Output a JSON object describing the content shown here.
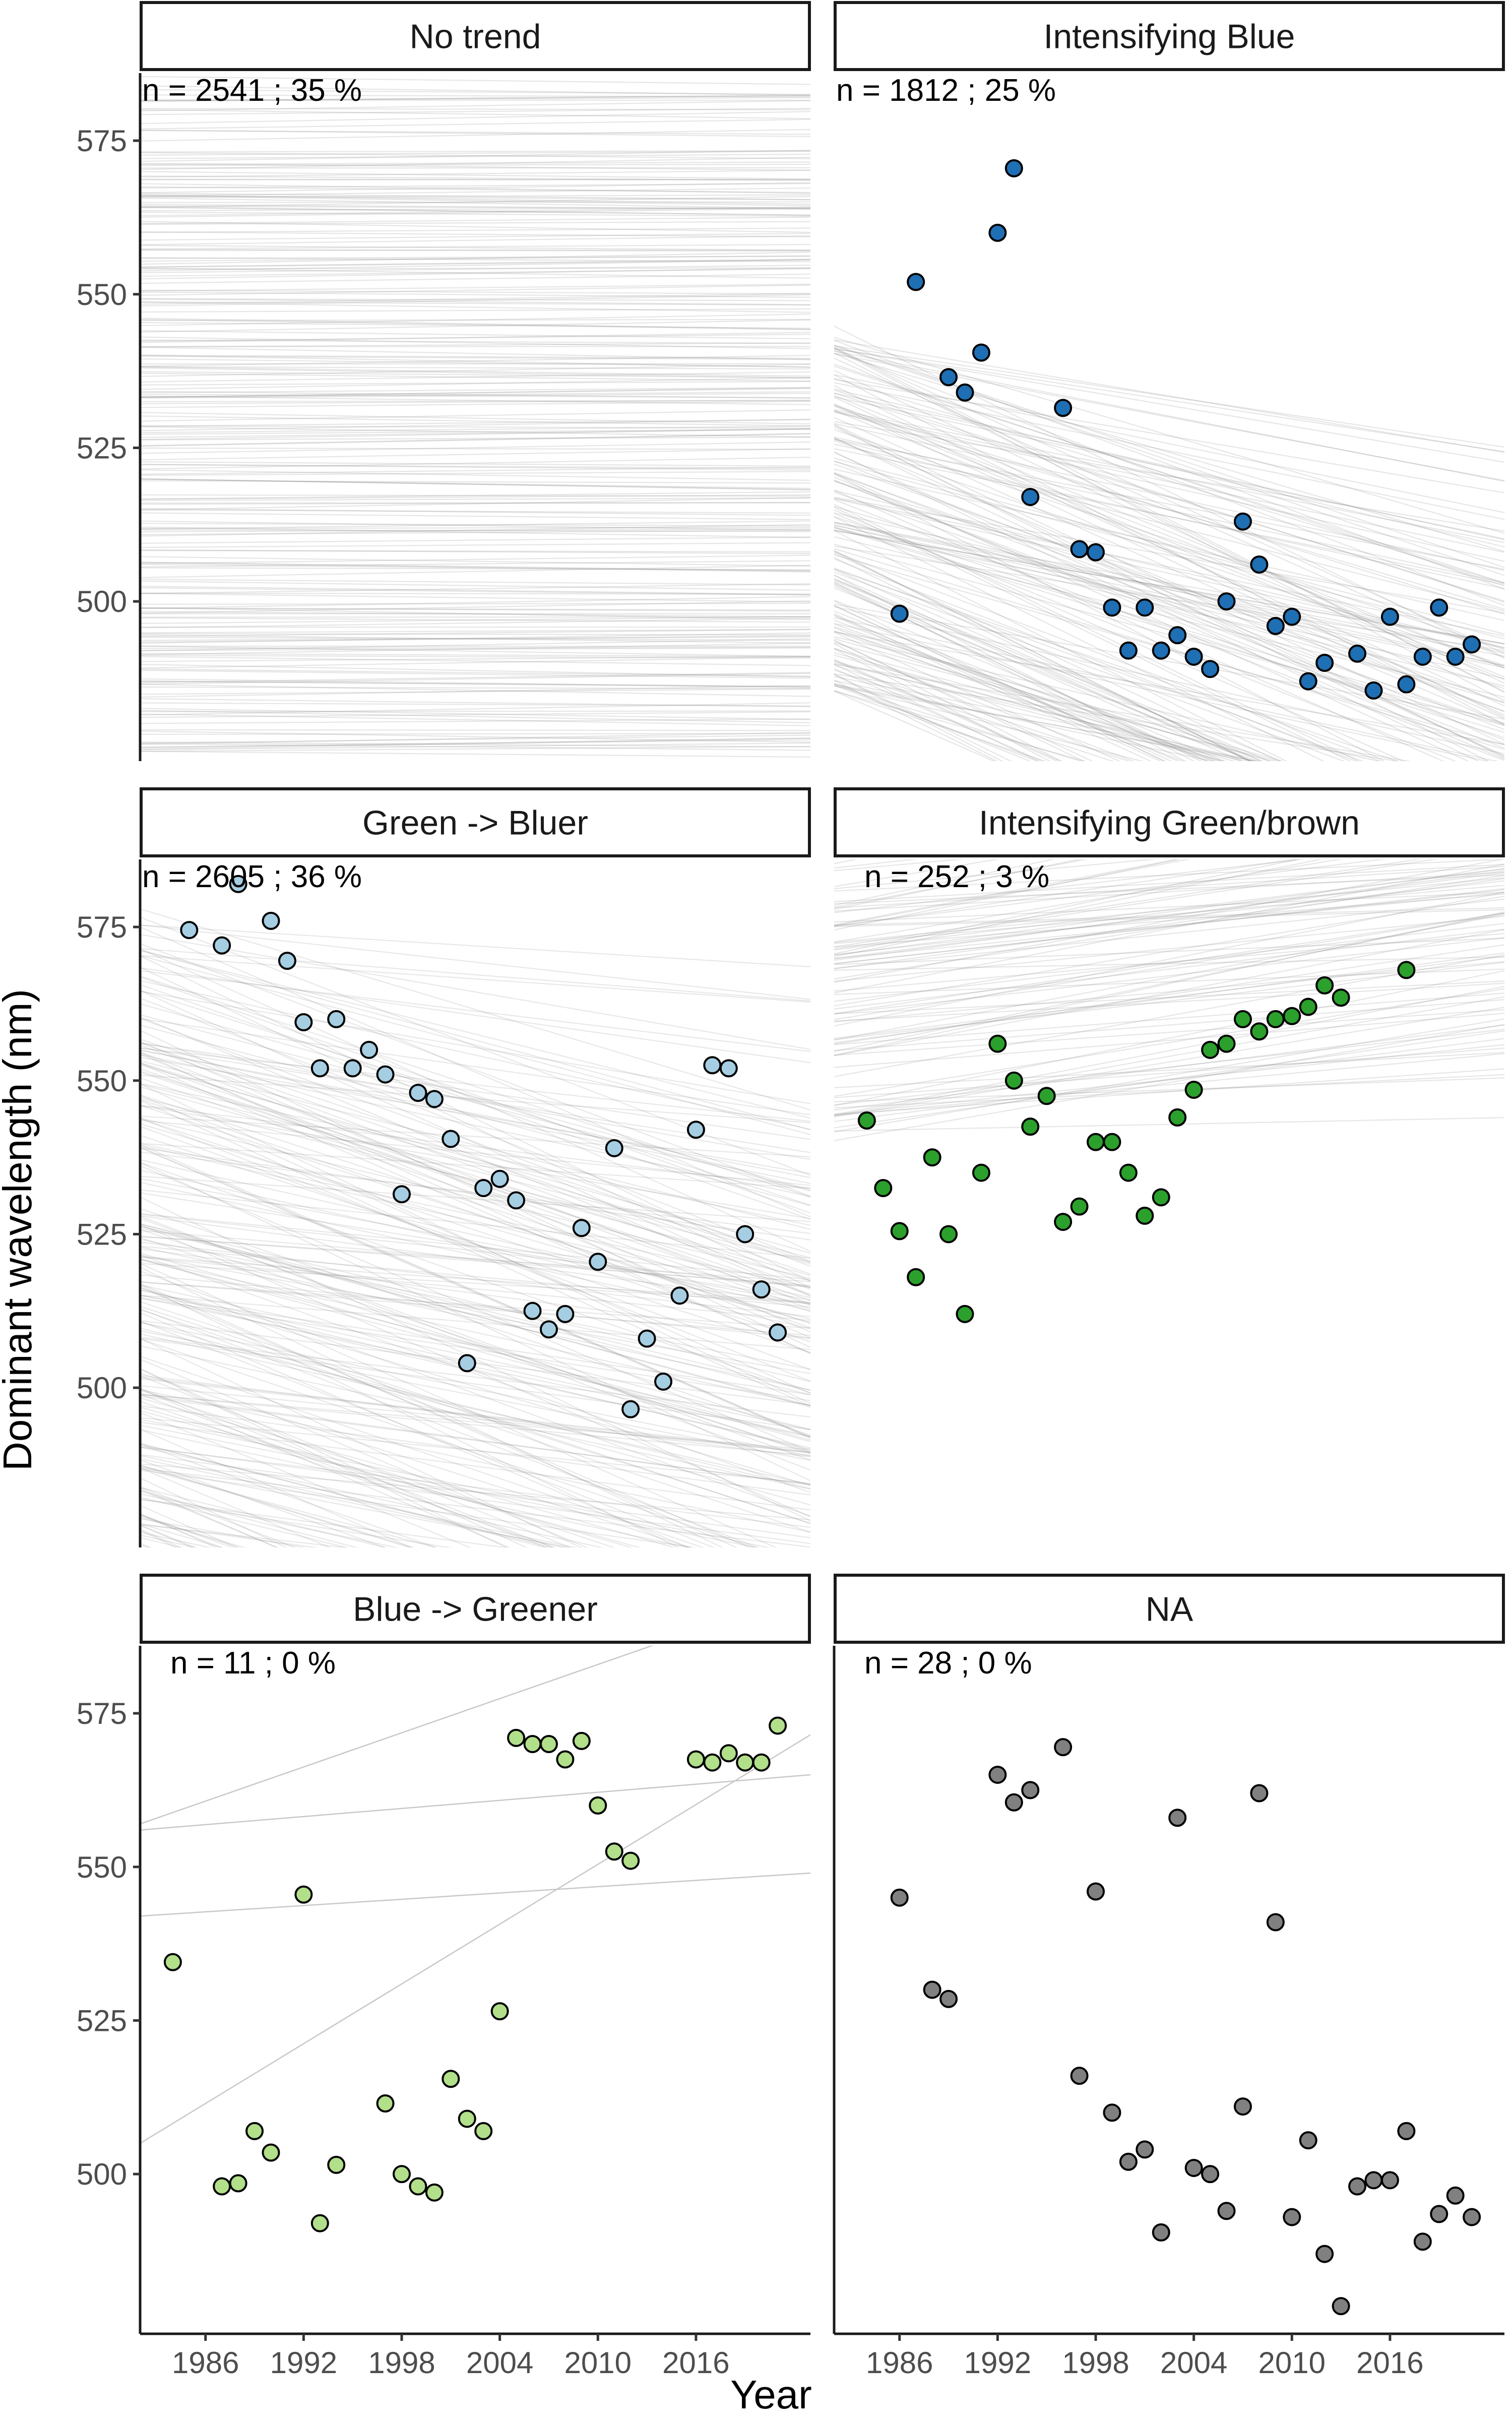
{
  "chart_data": {
    "type": "scatter",
    "title": "",
    "xlabel": "Year",
    "ylabel": "Dominant wavelength (nm)",
    "xlim": [
      1982,
      2023
    ],
    "ylim": [
      474,
      586
    ],
    "xticks": [
      1986,
      1992,
      1998,
      2004,
      2010,
      2016
    ],
    "yticks": [
      500,
      525,
      550,
      575
    ],
    "layout": "3 rows x 2 columns facets",
    "panels": [
      {
        "strip": "No trend",
        "annotation": "n = 2541 ; 35 %",
        "color": "#808080",
        "line_bundle": {
          "start_range": [
            474,
            586
          ],
          "slope_range": [
            -0.05,
            0.05
          ],
          "count": 260,
          "opacity": 0.22
        },
        "lines": [],
        "points": []
      },
      {
        "strip": "Intensifying Blue",
        "annotation": "n = 1812 ; 25 %",
        "color": "#1f6fb4",
        "line_bundle": {
          "start_range": [
            485,
            545
          ],
          "slope_range": [
            -1.4,
            -0.4
          ],
          "count": 180,
          "opacity": 0.22
        },
        "lines": [],
        "points": [
          [
            1986,
            498
          ],
          [
            1987,
            552
          ],
          [
            1989,
            536.5
          ],
          [
            1990,
            534
          ],
          [
            1991,
            540.5
          ],
          [
            1992,
            560
          ],
          [
            1993,
            570.5
          ],
          [
            1994,
            517
          ],
          [
            1996,
            531.5
          ],
          [
            1997,
            508.5
          ],
          [
            1998,
            508
          ],
          [
            1999,
            499
          ],
          [
            2000,
            492
          ],
          [
            2001,
            499
          ],
          [
            2002,
            492
          ],
          [
            2003,
            494.5
          ],
          [
            2004,
            491
          ],
          [
            2005,
            489
          ],
          [
            2006,
            500
          ],
          [
            2007,
            513
          ],
          [
            2008,
            506
          ],
          [
            2009,
            496
          ],
          [
            2010,
            497.5
          ],
          [
            2011,
            487
          ],
          [
            2012,
            490
          ],
          [
            2014,
            491.5
          ],
          [
            2015,
            485.5
          ],
          [
            2016,
            497.5
          ],
          [
            2017,
            486.5
          ],
          [
            2018,
            491
          ],
          [
            2019,
            499
          ],
          [
            2020,
            491
          ],
          [
            2021,
            493
          ]
        ]
      },
      {
        "strip": "Green -> Bluer",
        "annotation": "n = 2605 ; 36 %",
        "color": "#a6cee3",
        "line_bundle": {
          "start_range": [
            474,
            578
          ],
          "slope_range": [
            -1.3,
            -0.15
          ],
          "count": 240,
          "opacity": 0.2
        },
        "lines": [],
        "points": [
          [
            1985,
            574.5
          ],
          [
            1987,
            572
          ],
          [
            1988,
            582
          ],
          [
            1990,
            576
          ],
          [
            1991,
            569.5
          ],
          [
            1992,
            559.5
          ],
          [
            1993,
            552
          ],
          [
            1994,
            560
          ],
          [
            1995,
            552
          ],
          [
            1996,
            555
          ],
          [
            1997,
            551
          ],
          [
            1998,
            531.5
          ],
          [
            1999,
            548
          ],
          [
            2000,
            547
          ],
          [
            2001,
            540.5
          ],
          [
            2002,
            504
          ],
          [
            2003,
            532.5
          ],
          [
            2004,
            534
          ],
          [
            2005,
            530.5
          ],
          [
            2006,
            512.5
          ],
          [
            2007,
            509.5
          ],
          [
            2008,
            512
          ],
          [
            2009,
            526
          ],
          [
            2010,
            520.5
          ],
          [
            2011,
            539
          ],
          [
            2012,
            496.5
          ],
          [
            2013,
            508
          ],
          [
            2014,
            501
          ],
          [
            2015,
            515
          ],
          [
            2016,
            542
          ],
          [
            2017,
            552.5
          ],
          [
            2018,
            552
          ],
          [
            2019,
            525
          ],
          [
            2020,
            516
          ],
          [
            2021,
            509
          ]
        ]
      },
      {
        "strip": "Intensifying Green/brown",
        "annotation": "n = 252 ; 3 %",
        "color": "#2ca02c",
        "line_bundle": {
          "start_range": [
            540,
            586
          ],
          "slope_range": [
            0.05,
            0.6
          ],
          "count": 90,
          "opacity": 0.22
        },
        "lines": [],
        "points": [
          [
            1984,
            543.5
          ],
          [
            1985,
            532.5
          ],
          [
            1986,
            525.5
          ],
          [
            1987,
            518
          ],
          [
            1988,
            537.5
          ],
          [
            1989,
            525
          ],
          [
            1990,
            512
          ],
          [
            1991,
            535
          ],
          [
            1992,
            556
          ],
          [
            1993,
            550
          ],
          [
            1994,
            542.5
          ],
          [
            1995,
            547.5
          ],
          [
            1996,
            527
          ],
          [
            1997,
            529.5
          ],
          [
            1998,
            540
          ],
          [
            1999,
            540
          ],
          [
            2000,
            535
          ],
          [
            2001,
            528
          ],
          [
            2002,
            531
          ],
          [
            2003,
            544
          ],
          [
            2004,
            548.5
          ],
          [
            2005,
            555
          ],
          [
            2006,
            556
          ],
          [
            2007,
            560
          ],
          [
            2008,
            558
          ],
          [
            2009,
            560
          ],
          [
            2010,
            560.5
          ],
          [
            2011,
            562
          ],
          [
            2012,
            565.5
          ],
          [
            2013,
            563.5
          ],
          [
            2017,
            568
          ]
        ]
      },
      {
        "strip": "Blue -> Greener",
        "annotation": "n = 11 ; 0 %",
        "color": "#b2df8a",
        "line_bundle": null,
        "lines": [
          [
            1982,
            557,
            2023,
            595
          ],
          [
            1982,
            556,
            2023,
            565
          ],
          [
            1982,
            542,
            2023,
            549
          ],
          [
            1982,
            505,
            2023,
            571.5
          ]
        ],
        "points": [
          [
            1984,
            534.5
          ],
          [
            1987,
            498
          ],
          [
            1988,
            498.5
          ],
          [
            1989,
            507
          ],
          [
            1990,
            503.5
          ],
          [
            1992,
            545.5
          ],
          [
            1993,
            492
          ],
          [
            1994,
            501.5
          ],
          [
            1997,
            511.5
          ],
          [
            1998,
            500
          ],
          [
            1999,
            498
          ],
          [
            2000,
            497
          ],
          [
            2001,
            515.5
          ],
          [
            2002,
            509
          ],
          [
            2003,
            507
          ],
          [
            2004,
            526.5
          ],
          [
            2005,
            571
          ],
          [
            2006,
            570
          ],
          [
            2007,
            570
          ],
          [
            2008,
            567.5
          ],
          [
            2009,
            570.5
          ],
          [
            2010,
            560
          ],
          [
            2011,
            552.5
          ],
          [
            2012,
            551
          ],
          [
            2016,
            567.5
          ],
          [
            2017,
            567
          ],
          [
            2018,
            568.5
          ],
          [
            2019,
            567
          ],
          [
            2020,
            567
          ],
          [
            2021,
            573
          ]
        ]
      },
      {
        "strip": "NA",
        "annotation": "n = 28 ; 0 %",
        "color": "#808080",
        "line_bundle": null,
        "lines": [],
        "points": [
          [
            1986,
            545
          ],
          [
            1988,
            530
          ],
          [
            1989,
            528.5
          ],
          [
            1992,
            565
          ],
          [
            1993,
            560.5
          ],
          [
            1994,
            562.5
          ],
          [
            1996,
            569.5
          ],
          [
            1997,
            516
          ],
          [
            1998,
            546
          ],
          [
            1999,
            510
          ],
          [
            2000,
            502
          ],
          [
            2001,
            504
          ],
          [
            2002,
            490.5
          ],
          [
            2003,
            558
          ],
          [
            2004,
            501
          ],
          [
            2005,
            500
          ],
          [
            2006,
            494
          ],
          [
            2007,
            511
          ],
          [
            2008,
            562
          ],
          [
            2009,
            541
          ],
          [
            2010,
            493
          ],
          [
            2011,
            505.5
          ],
          [
            2012,
            487
          ],
          [
            2013,
            478.5
          ],
          [
            2014,
            498
          ],
          [
            2015,
            499
          ],
          [
            2016,
            499
          ],
          [
            2017,
            507
          ],
          [
            2018,
            489
          ],
          [
            2019,
            493.5
          ],
          [
            2020,
            496.5
          ],
          [
            2021,
            493
          ]
        ]
      }
    ]
  }
}
